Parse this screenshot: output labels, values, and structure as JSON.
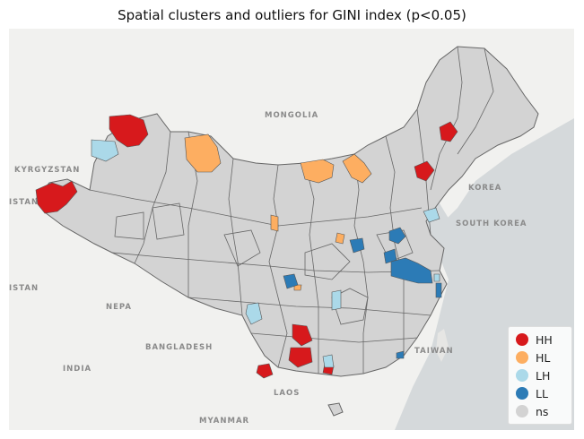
{
  "title": "Spatial clusters and outliers for GINI index (p<0.05)",
  "basemap_labels": {
    "mongolia": "MONGOLIA",
    "kyrgyzstan": "KYRGYZSTAN",
    "korea": "KOREA",
    "south_korea": "SOUTH KOREA",
    "nepal": "NEPA",
    "bangladesh": "BANGLADESH",
    "taiwan": "TAIWAN",
    "india": "INDIA",
    "laos": "LAOS",
    "myanmar": "MYANMAR",
    "pakistan_partial": "ISTAN",
    "kistan_partial": "ISTAN"
  },
  "legend": [
    {
      "label": "HH",
      "color": "#d7191c"
    },
    {
      "label": "HL",
      "color": "#fdae61"
    },
    {
      "label": "LH",
      "color": "#abd9e9"
    },
    {
      "label": "LL",
      "color": "#2c7bb6"
    },
    {
      "label": "ns",
      "color": "#d3d3d3"
    }
  ],
  "colors": {
    "land": "#f2f2f0",
    "sea": "#d6dadc",
    "ns": "#d3d3d3",
    "boundary": "#666666"
  }
}
